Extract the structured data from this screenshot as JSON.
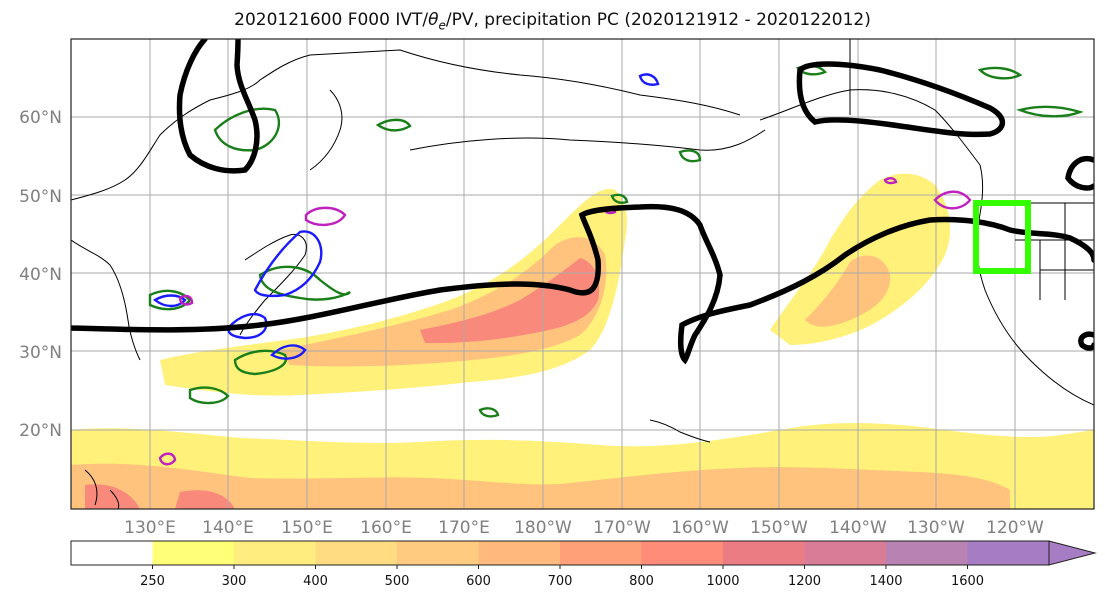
{
  "title": "2020121600 F000 IVT/θe/PV, precipitation PC (2020121912 - 2020122012)",
  "title_parts": {
    "prefix": "2020121600 F000 IVT/",
    "theta": "θ",
    "subscript": "e",
    "suffix": "/PV, precipitation PC (2020121912 - 2020122012)"
  },
  "lat_labels": [
    "20°N",
    "30°N",
    "40°N",
    "50°N",
    "60°N"
  ],
  "lon_labels": [
    "130°E",
    "140°E",
    "150°E",
    "160°E",
    "170°E",
    "180°W",
    "170°W",
    "160°W",
    "150°W",
    "140°W",
    "130°W",
    "120°W"
  ],
  "colorbar": {
    "levels": [
      "250",
      "300",
      "400",
      "500",
      "600",
      "700",
      "800",
      "1000",
      "1200",
      "1400",
      "1600"
    ],
    "colors": [
      "#ffffff",
      "#ffff78",
      "#ffed80",
      "#ffdc82",
      "#ffcb80",
      "#ffb97c",
      "#ffa078",
      "#ff8c78",
      "#ec7c84",
      "#d87c98",
      "#b882b2",
      "#a67cc4"
    ]
  },
  "colors": {
    "ivt_fill_light": "#fff17a",
    "ivt_fill_mid": "#ffc37e",
    "ivt_fill_high": "#f98a7b",
    "pv_contour": "#000000",
    "theta_green": "#1a7f1a",
    "theta_blue": "#1a1aff",
    "theta_magenta": "#c020c0",
    "target_box": "#33ff00",
    "grid": "#aaaaaa",
    "coast": "#000000"
  }
}
